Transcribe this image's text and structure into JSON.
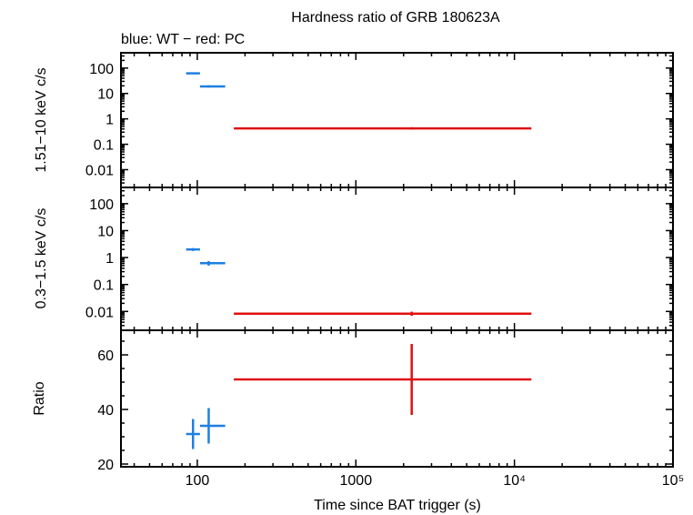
{
  "colors": {
    "wt": "#1f7fe0",
    "pc": "#e01010",
    "axis": "#000000"
  },
  "chart_data": {
    "title": "Hardness ratio of GRB 180623A",
    "subtitle": "blue: WT − red: PC",
    "xlabel": "Time since BAT trigger (s)",
    "x_scale": "log",
    "xlim": [
      33,
      100000
    ],
    "x_ticks": [
      {
        "value": 100,
        "label": "100"
      },
      {
        "value": 1000,
        "label": "1000"
      },
      {
        "value": 10000,
        "label": "10⁴"
      },
      {
        "value": 100000,
        "label": "10⁵"
      }
    ],
    "panels": [
      {
        "id": "hard",
        "type": "scatter",
        "ylabel": "1.51−10 keV c/s",
        "y_scale": "log",
        "ylim": [
          0.002,
          400
        ],
        "y_ticks": [
          {
            "value": 100,
            "label": "100"
          },
          {
            "value": 10,
            "label": "10"
          },
          {
            "value": 1,
            "label": "1"
          },
          {
            "value": 0.1,
            "label": "0.1"
          },
          {
            "value": 0.01,
            "label": "0.01"
          }
        ],
        "series": [
          {
            "key": "wt",
            "points": [
              {
                "x": 94,
                "xlo": 85,
                "xhi": 104,
                "y": 62,
                "ylo": 59,
                "yhi": 65
              },
              {
                "x": 118,
                "xlo": 104,
                "xhi": 150,
                "y": 19,
                "ylo": 17,
                "yhi": 21
              }
            ]
          },
          {
            "key": "pc",
            "points": [
              {
                "x": 2250,
                "xlo": 170,
                "xhi": 12800,
                "y": 0.42,
                "ylo": 0.38,
                "yhi": 0.47
              }
            ]
          }
        ]
      },
      {
        "id": "soft",
        "type": "scatter",
        "ylabel": "0.3−1.5 keV c/s",
        "y_scale": "log",
        "ylim": [
          0.002,
          400
        ],
        "y_ticks": [
          {
            "value": 100,
            "label": "100"
          },
          {
            "value": 10,
            "label": "10"
          },
          {
            "value": 1,
            "label": "1"
          },
          {
            "value": 0.1,
            "label": "0.1"
          },
          {
            "value": 0.01,
            "label": "0.01"
          }
        ],
        "series": [
          {
            "key": "wt",
            "points": [
              {
                "x": 94,
                "xlo": 85,
                "xhi": 104,
                "y": 2.0,
                "ylo": 1.75,
                "yhi": 2.25
              },
              {
                "x": 118,
                "xlo": 104,
                "xhi": 150,
                "y": 0.62,
                "ylo": 0.5,
                "yhi": 0.74
              }
            ]
          },
          {
            "key": "pc",
            "points": [
              {
                "x": 2250,
                "xlo": 170,
                "xhi": 12800,
                "y": 0.0083,
                "ylo": 0.0069,
                "yhi": 0.0098
              }
            ]
          }
        ]
      },
      {
        "id": "ratio",
        "type": "scatter",
        "ylabel": "Ratio",
        "y_scale": "linear",
        "ylim": [
          19,
          69
        ],
        "y_ticks": [
          {
            "value": 60,
            "label": "60"
          },
          {
            "value": 40,
            "label": "40"
          },
          {
            "value": 20,
            "label": "20"
          }
        ],
        "series": [
          {
            "key": "wt",
            "points": [
              {
                "x": 94,
                "xlo": 85,
                "xhi": 104,
                "y": 31,
                "ylo": 25.5,
                "yhi": 36.5
              },
              {
                "x": 118,
                "xlo": 104,
                "xhi": 150,
                "y": 34,
                "ylo": 27.5,
                "yhi": 40.5
              }
            ]
          },
          {
            "key": "pc",
            "points": [
              {
                "x": 2250,
                "xlo": 170,
                "xhi": 12800,
                "y": 51,
                "ylo": 38,
                "yhi": 64
              }
            ]
          }
        ]
      }
    ]
  }
}
